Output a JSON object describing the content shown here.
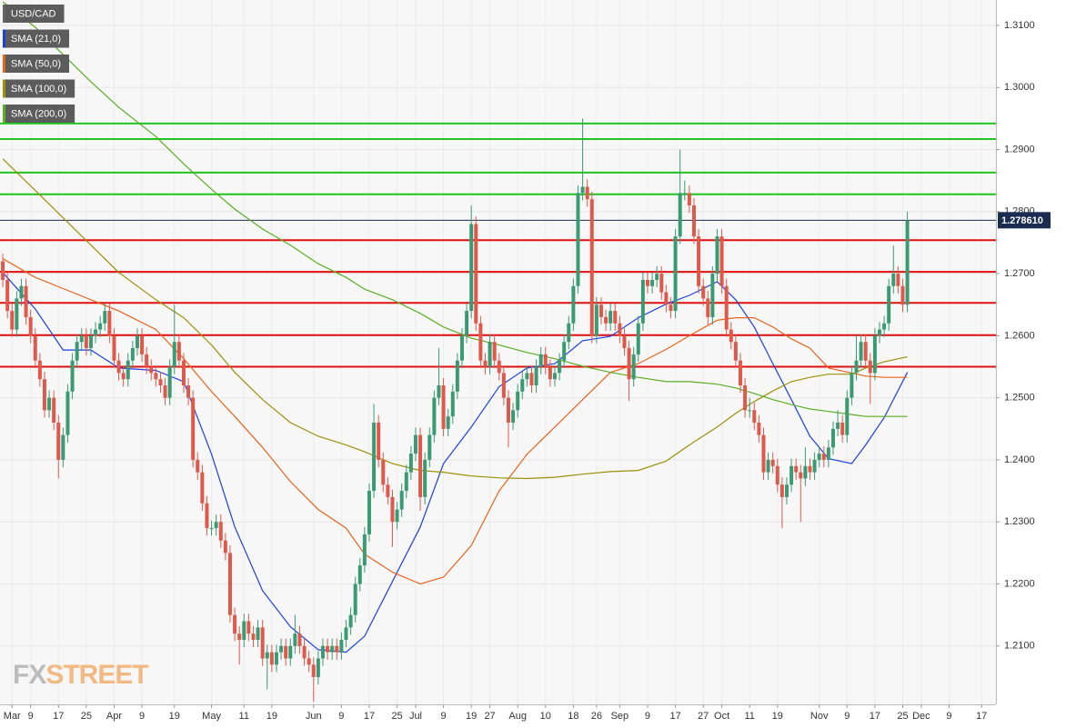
{
  "chart_data": {
    "type": "candlestick",
    "symbol": "USD/CAD",
    "xlim": [
      -0.6,
      214.1
    ],
    "ylim": [
      1.2006,
      1.3141
    ],
    "grid": true,
    "up_color": "#3a9a73",
    "down_color": "#e0584a",
    "yticks": [
      {
        "value": 1.21,
        "label": "1.2100"
      },
      {
        "value": 1.22,
        "label": "1.2200"
      },
      {
        "value": 1.23,
        "label": "1.2300"
      },
      {
        "value": 1.24,
        "label": "1.2400"
      },
      {
        "value": 1.25,
        "label": "1.2500"
      },
      {
        "value": 1.26,
        "label": "1.2600"
      },
      {
        "value": 1.27,
        "label": "1.2700"
      },
      {
        "value": 1.28,
        "label": "1.2800"
      },
      {
        "value": 1.29,
        "label": "1.2900"
      },
      {
        "value": 1.3,
        "label": "1.3000"
      },
      {
        "value": 1.31,
        "label": "1.3100"
      }
    ],
    "xticks": [
      {
        "value": 2,
        "label": "Mar"
      },
      {
        "value": 6,
        "label": "9"
      },
      {
        "value": 12,
        "label": "17"
      },
      {
        "value": 18,
        "label": "25"
      },
      {
        "value": 24,
        "label": "Apr"
      },
      {
        "value": 30,
        "label": "9"
      },
      {
        "value": 37,
        "label": "19"
      },
      {
        "value": 45,
        "label": "May"
      },
      {
        "value": 52,
        "label": "11"
      },
      {
        "value": 58,
        "label": "19"
      },
      {
        "value": 67,
        "label": "Jun"
      },
      {
        "value": 73,
        "label": "9"
      },
      {
        "value": 79,
        "label": "17"
      },
      {
        "value": 85,
        "label": "25"
      },
      {
        "value": 89,
        "label": "Jul"
      },
      {
        "value": 95,
        "label": "9"
      },
      {
        "value": 101,
        "label": "19"
      },
      {
        "value": 105,
        "label": "27"
      },
      {
        "value": 111,
        "label": "Aug"
      },
      {
        "value": 117,
        "label": "10"
      },
      {
        "value": 123,
        "label": "18"
      },
      {
        "value": 128,
        "label": "26"
      },
      {
        "value": 133,
        "label": "Sep"
      },
      {
        "value": 139,
        "label": "9"
      },
      {
        "value": 145,
        "label": "17"
      },
      {
        "value": 151,
        "label": "27"
      },
      {
        "value": 155,
        "label": "Oct"
      },
      {
        "value": 161,
        "label": "11"
      },
      {
        "value": 167,
        "label": "19"
      },
      {
        "value": 176,
        "label": "Nov"
      },
      {
        "value": 182,
        "label": "9"
      },
      {
        "value": 188,
        "label": "17"
      },
      {
        "value": 194,
        "label": "25"
      },
      {
        "value": 198,
        "label": "Dec"
      },
      {
        "value": 204,
        "label": "9"
      },
      {
        "value": 211,
        "label": "17"
      }
    ],
    "open": [
      1.272,
      1.269,
      1.264,
      1.261,
      1.266,
      1.268,
      1.263,
      1.26,
      1.256,
      1.253,
      1.248,
      1.25,
      1.246,
      1.24,
      1.244,
      1.251,
      1.256,
      1.259,
      1.26,
      1.258,
      1.26,
      1.261,
      1.262,
      1.264,
      1.26,
      1.256,
      1.254,
      1.253,
      1.256,
      1.258,
      1.26,
      1.257,
      1.255,
      1.254,
      1.253,
      1.252,
      1.25,
      1.255,
      1.259,
      1.256,
      1.252,
      1.25,
      1.24,
      1.238,
      1.233,
      1.229,
      1.229,
      1.23,
      1.227,
      1.225,
      1.215,
      1.212,
      1.211,
      1.214,
      1.212,
      1.211,
      1.213,
      1.208,
      1.209,
      1.207,
      1.209,
      1.21,
      1.208,
      1.21,
      1.212,
      1.21,
      1.208,
      1.207,
      1.205,
      1.208,
      1.21,
      1.209,
      1.21,
      1.209,
      1.211,
      1.213,
      1.215,
      1.22,
      1.223,
      1.228,
      1.235,
      1.246,
      1.24,
      1.236,
      1.234,
      1.23,
      1.232,
      1.235,
      1.238,
      1.241,
      1.244,
      1.234,
      1.24,
      1.244,
      1.25,
      1.252,
      1.245,
      1.247,
      1.251,
      1.256,
      1.26,
      1.264,
      1.278,
      1.262,
      1.256,
      1.255,
      1.259,
      1.256,
      1.254,
      1.25,
      1.246,
      1.248,
      1.251,
      1.253,
      1.254,
      1.252,
      1.255,
      1.257,
      1.255,
      1.253,
      1.254,
      1.256,
      1.259,
      1.262,
      1.268,
      1.283,
      1.284,
      1.282,
      1.26,
      1.265,
      1.263,
      1.262,
      1.264,
      1.262,
      1.26,
      1.258,
      1.253,
      1.257,
      1.262,
      1.269,
      1.268,
      1.269,
      1.27,
      1.267,
      1.265,
      1.264,
      1.276,
      1.283,
      1.283,
      1.281,
      1.276,
      1.268,
      1.266,
      1.263,
      1.27,
      1.276,
      1.268,
      1.261,
      1.259,
      1.256,
      1.252,
      1.248,
      1.248,
      1.246,
      1.244,
      1.238,
      1.24,
      1.239,
      1.236,
      1.234,
      1.236,
      1.239,
      1.238,
      1.237,
      1.239,
      1.238,
      1.24,
      1.241,
      1.24,
      1.242,
      1.245,
      1.246,
      1.244,
      1.25,
      1.254,
      1.256,
      1.259,
      1.256,
      1.254,
      1.26,
      1.261,
      1.262,
      1.268,
      1.27,
      1.268,
      1.265
    ],
    "high": [
      1.2732,
      1.2702,
      1.2652,
      1.2672,
      1.2692,
      1.2692,
      1.2642,
      1.2612,
      1.2572,
      1.2542,
      1.2512,
      1.2512,
      1.2472,
      1.2452,
      1.2522,
      1.2572,
      1.2602,
      1.2612,
      1.2612,
      1.2612,
      1.2622,
      1.2632,
      1.2652,
      1.2652,
      1.2612,
      1.2572,
      1.2552,
      1.2572,
      1.2592,
      1.2612,
      1.2612,
      1.2582,
      1.2562,
      1.2552,
      1.2542,
      1.2532,
      1.2562,
      1.265,
      1.2602,
      1.2572,
      1.2532,
      1.2512,
      1.2412,
      1.2392,
      1.2342,
      1.2302,
      1.2312,
      1.2312,
      1.2282,
      1.2262,
      1.2162,
      1.2132,
      1.2152,
      1.2152,
      1.2132,
      1.2142,
      1.2142,
      1.2102,
      1.2102,
      1.2102,
      1.2112,
      1.2112,
      1.2112,
      1.215,
      1.2132,
      1.2112,
      1.2092,
      1.2082,
      1.2092,
      1.2112,
      1.2112,
      1.2112,
      1.2112,
      1.2122,
      1.2142,
      1.2162,
      1.2212,
      1.2242,
      1.2292,
      1.2362,
      1.249,
      1.2472,
      1.2412,
      1.2372,
      1.2352,
      1.2332,
      1.2362,
      1.2392,
      1.2422,
      1.2452,
      1.2452,
      1.2412,
      1.2452,
      1.2512,
      1.258,
      1.2532,
      1.2482,
      1.2522,
      1.2572,
      1.2612,
      1.2652,
      1.281,
      1.2792,
      1.2632,
      1.2572,
      1.2602,
      1.2602,
      1.2572,
      1.2552,
      1.2512,
      1.2492,
      1.2522,
      1.2542,
      1.2552,
      1.2552,
      1.2562,
      1.2582,
      1.2582,
      1.2562,
      1.2552,
      1.2572,
      1.2602,
      1.2632,
      1.2692,
      1.2842,
      1.295,
      1.2852,
      1.2832,
      1.2662,
      1.2662,
      1.2642,
      1.2652,
      1.2652,
      1.2632,
      1.2612,
      1.2592,
      1.2582,
      1.2632,
      1.2702,
      1.2702,
      1.2702,
      1.2712,
      1.2712,
      1.2682,
      1.2662,
      1.2772,
      1.29,
      1.285,
      1.2842,
      1.2822,
      1.2772,
      1.2692,
      1.2672,
      1.2712,
      1.2772,
      1.2772,
      1.2692,
      1.2622,
      1.2602,
      1.2572,
      1.2532,
      1.25,
      1.2492,
      1.2472,
      1.2452,
      1.2412,
      1.2412,
      1.2402,
      1.2372,
      1.2372,
      1.2402,
      1.2402,
      1.2392,
      1.242,
      1.2402,
      1.2412,
      1.2422,
      1.2422,
      1.2432,
      1.2462,
      1.248,
      1.2472,
      1.2512,
      1.2552,
      1.26,
      1.2602,
      1.2602,
      1.2572,
      1.2612,
      1.2622,
      1.2632,
      1.2692,
      1.2745,
      1.2712,
      1.2692,
      1.28
    ],
    "low": [
      1.2678,
      1.2628,
      1.2598,
      1.2598,
      1.2648,
      1.2618,
      1.2588,
      1.2548,
      1.2518,
      1.2468,
      1.2468,
      1.2448,
      1.237,
      1.2388,
      1.2428,
      1.2498,
      1.2548,
      1.2578,
      1.2568,
      1.2568,
      1.2588,
      1.2598,
      1.2608,
      1.2588,
      1.2548,
      1.2528,
      1.2518,
      1.2518,
      1.2548,
      1.2568,
      1.2558,
      1.2538,
      1.2528,
      1.2518,
      1.2508,
      1.2488,
      1.2488,
      1.2538,
      1.2548,
      1.2508,
      1.2488,
      1.2388,
      1.2368,
      1.2318,
      1.2278,
      1.2278,
      1.2278,
      1.2258,
      1.2238,
      1.2138,
      1.2108,
      1.207,
      1.2098,
      1.2108,
      1.2098,
      1.2098,
      1.2068,
      1.203,
      1.2058,
      1.2058,
      1.2078,
      1.2068,
      1.2068,
      1.2088,
      1.2088,
      1.2068,
      1.2058,
      1.201,
      1.2038,
      1.2068,
      1.2078,
      1.2078,
      1.2078,
      1.2078,
      1.2098,
      1.2118,
      1.2138,
      1.2188,
      1.2218,
      1.2268,
      1.2338,
      1.2388,
      1.2348,
      1.2328,
      1.226,
      1.2288,
      1.2308,
      1.2338,
      1.2368,
      1.2398,
      1.2318,
      1.2328,
      1.2388,
      1.2428,
      1.2488,
      1.2438,
      1.2438,
      1.2458,
      1.2498,
      1.2548,
      1.2588,
      1.2628,
      1.2608,
      1.2548,
      1.2538,
      1.2538,
      1.2548,
      1.2528,
      1.2488,
      1.242,
      1.2448,
      1.2468,
      1.2498,
      1.2518,
      1.2508,
      1.2508,
      1.2538,
      1.2538,
      1.2518,
      1.2518,
      1.2528,
      1.2548,
      1.2578,
      1.2608,
      1.2668,
      1.2818,
      1.2808,
      1.2588,
      1.2588,
      1.2618,
      1.2608,
      1.2608,
      1.2608,
      1.2588,
      1.2568,
      1.2495,
      1.2518,
      1.2558,
      1.2608,
      1.2668,
      1.2668,
      1.2678,
      1.2658,
      1.2638,
      1.2628,
      1.2628,
      1.2748,
      1.2818,
      1.2798,
      1.2748,
      1.2668,
      1.2648,
      1.2618,
      1.2618,
      1.2688,
      1.2668,
      1.2598,
      1.2578,
      1.2548,
      1.2508,
      1.2468,
      1.2468,
      1.2448,
      1.2428,
      1.2368,
      1.2368,
      1.2378,
      1.2348,
      1.229,
      1.2328,
      1.2348,
      1.2368,
      1.23,
      1.2358,
      1.2368,
      1.2368,
      1.2388,
      1.2388,
      1.2388,
      1.2408,
      1.2438,
      1.2428,
      1.2428,
      1.2488,
      1.2528,
      1.2548,
      1.2548,
      1.249,
      1.2528,
      1.2588,
      1.2598,
      1.2608,
      1.2668,
      1.2668,
      1.2638,
      1.2638
    ],
    "close": [
      1.269,
      1.264,
      1.261,
      1.266,
      1.268,
      1.263,
      1.26,
      1.256,
      1.253,
      1.248,
      1.25,
      1.246,
      1.24,
      1.244,
      1.251,
      1.256,
      1.259,
      1.26,
      1.258,
      1.26,
      1.261,
      1.262,
      1.264,
      1.26,
      1.256,
      1.254,
      1.253,
      1.256,
      1.258,
      1.26,
      1.257,
      1.255,
      1.254,
      1.253,
      1.252,
      1.25,
      1.255,
      1.259,
      1.256,
      1.252,
      1.25,
      1.24,
      1.238,
      1.233,
      1.229,
      1.229,
      1.23,
      1.227,
      1.225,
      1.215,
      1.212,
      1.211,
      1.214,
      1.212,
      1.211,
      1.213,
      1.208,
      1.209,
      1.207,
      1.209,
      1.21,
      1.208,
      1.21,
      1.212,
      1.21,
      1.208,
      1.207,
      1.205,
      1.208,
      1.21,
      1.209,
      1.21,
      1.209,
      1.211,
      1.213,
      1.215,
      1.22,
      1.223,
      1.228,
      1.235,
      1.246,
      1.24,
      1.236,
      1.234,
      1.23,
      1.232,
      1.235,
      1.238,
      1.241,
      1.244,
      1.234,
      1.24,
      1.244,
      1.25,
      1.252,
      1.245,
      1.247,
      1.251,
      1.256,
      1.26,
      1.264,
      1.278,
      1.262,
      1.256,
      1.255,
      1.259,
      1.256,
      1.254,
      1.25,
      1.246,
      1.248,
      1.251,
      1.253,
      1.254,
      1.252,
      1.255,
      1.257,
      1.255,
      1.253,
      1.254,
      1.256,
      1.259,
      1.262,
      1.268,
      1.283,
      1.284,
      1.282,
      1.26,
      1.265,
      1.263,
      1.262,
      1.264,
      1.262,
      1.26,
      1.258,
      1.253,
      1.257,
      1.262,
      1.269,
      1.268,
      1.269,
      1.27,
      1.267,
      1.265,
      1.264,
      1.276,
      1.283,
      1.283,
      1.281,
      1.276,
      1.268,
      1.266,
      1.263,
      1.27,
      1.276,
      1.268,
      1.261,
      1.259,
      1.256,
      1.252,
      1.248,
      1.248,
      1.246,
      1.244,
      1.238,
      1.24,
      1.239,
      1.236,
      1.234,
      1.236,
      1.239,
      1.238,
      1.237,
      1.239,
      1.238,
      1.24,
      1.241,
      1.24,
      1.242,
      1.245,
      1.246,
      1.244,
      1.25,
      1.254,
      1.256,
      1.259,
      1.256,
      1.254,
      1.26,
      1.261,
      1.262,
      1.268,
      1.27,
      1.268,
      1.265,
      1.2786
    ],
    "sma_x": [
      0,
      7,
      13,
      19,
      25,
      33,
      39,
      45,
      50,
      56,
      62,
      68,
      74,
      78,
      84,
      90,
      95,
      101,
      107,
      113,
      119,
      125,
      131,
      137,
      143,
      148,
      154,
      158,
      162,
      166,
      170,
      174,
      178,
      183,
      186,
      190,
      195
    ],
    "series": [
      {
        "name": "SMA (21,0)",
        "color": "#1d3fe0",
        "values": [
          1.2702,
          1.2643,
          1.2577,
          1.2577,
          1.2548,
          1.2544,
          1.2526,
          1.2409,
          1.2292,
          1.2189,
          1.2131,
          1.2094,
          1.209,
          1.2116,
          1.2204,
          1.2292,
          1.2394,
          1.2453,
          1.2518,
          1.2548,
          1.2555,
          1.2592,
          1.2599,
          1.2629,
          1.2651,
          1.2665,
          1.2687,
          1.2658,
          1.2614,
          1.2555,
          1.2497,
          1.2438,
          1.2402,
          1.2394,
          1.2424,
          1.2468,
          1.2541
        ]
      },
      {
        "name": "SMA (50,0)",
        "color": "#e8641c",
        "values": [
          1.2724,
          1.2694,
          1.2676,
          1.2658,
          1.264,
          1.261,
          1.2563,
          1.251,
          1.247,
          1.242,
          1.2365,
          1.232,
          1.229,
          1.2248,
          1.2219,
          1.22,
          1.2211,
          1.2262,
          1.235,
          1.2409,
          1.2453,
          1.2497,
          1.2541,
          1.2555,
          1.2578,
          1.26,
          1.2625,
          1.2629,
          1.2629,
          1.2614,
          1.2595,
          1.258,
          1.2548,
          1.254,
          1.2535,
          1.2533,
          1.2533
        ]
      },
      {
        "name": "SMA (100,0)",
        "color": "#9d8f06",
        "values": [
          1.2885,
          1.2834,
          1.279,
          1.2746,
          1.2702,
          1.2658,
          1.2629,
          1.2585,
          1.2541,
          1.2497,
          1.246,
          1.2438,
          1.2424,
          1.2413,
          1.2394,
          1.2383,
          1.238,
          1.2374,
          1.2371,
          1.237,
          1.2372,
          1.2377,
          1.2381,
          1.2383,
          1.2398,
          1.2424,
          1.2453,
          1.2475,
          1.2494,
          1.2511,
          1.2526,
          1.2533,
          1.2538,
          1.2538,
          1.2548,
          1.2558,
          1.2566
        ]
      },
      {
        "name": "SMA (200,0)",
        "color": "#5aae24",
        "values": [
          1.3138,
          1.3097,
          1.3053,
          1.3009,
          1.2968,
          1.2921,
          1.2877,
          1.2836,
          1.2804,
          1.2772,
          1.2746,
          1.2716,
          1.2694,
          1.2675,
          1.2658,
          1.2636,
          1.2614,
          1.2596,
          1.2585,
          1.2573,
          1.2563,
          1.2551,
          1.2541,
          1.2533,
          1.2526,
          1.2526,
          1.2522,
          1.2516,
          1.2507,
          1.2497,
          1.2489,
          1.2482,
          1.2478,
          1.2473,
          1.247,
          1.247,
          1.247
        ]
      }
    ],
    "levels": [
      {
        "value": 1.2942,
        "color": "#1fc41f"
      },
      {
        "value": 1.2917,
        "color": "#1fc41f"
      },
      {
        "value": 1.2863,
        "color": "#1fc41f"
      },
      {
        "value": 1.2828,
        "color": "#1fc41f"
      },
      {
        "value": 1.2754,
        "color": "#e01010"
      },
      {
        "value": 1.2703,
        "color": "#e01010"
      },
      {
        "value": 1.2653,
        "color": "#e01010"
      },
      {
        "value": 1.2601,
        "color": "#e01010"
      },
      {
        "value": 1.255,
        "color": "#e01010"
      }
    ],
    "last_price": {
      "value": 1.27861,
      "label": "1.278610",
      "color": "#1b2c52"
    },
    "watermark": [
      "FX",
      "STREET"
    ]
  }
}
